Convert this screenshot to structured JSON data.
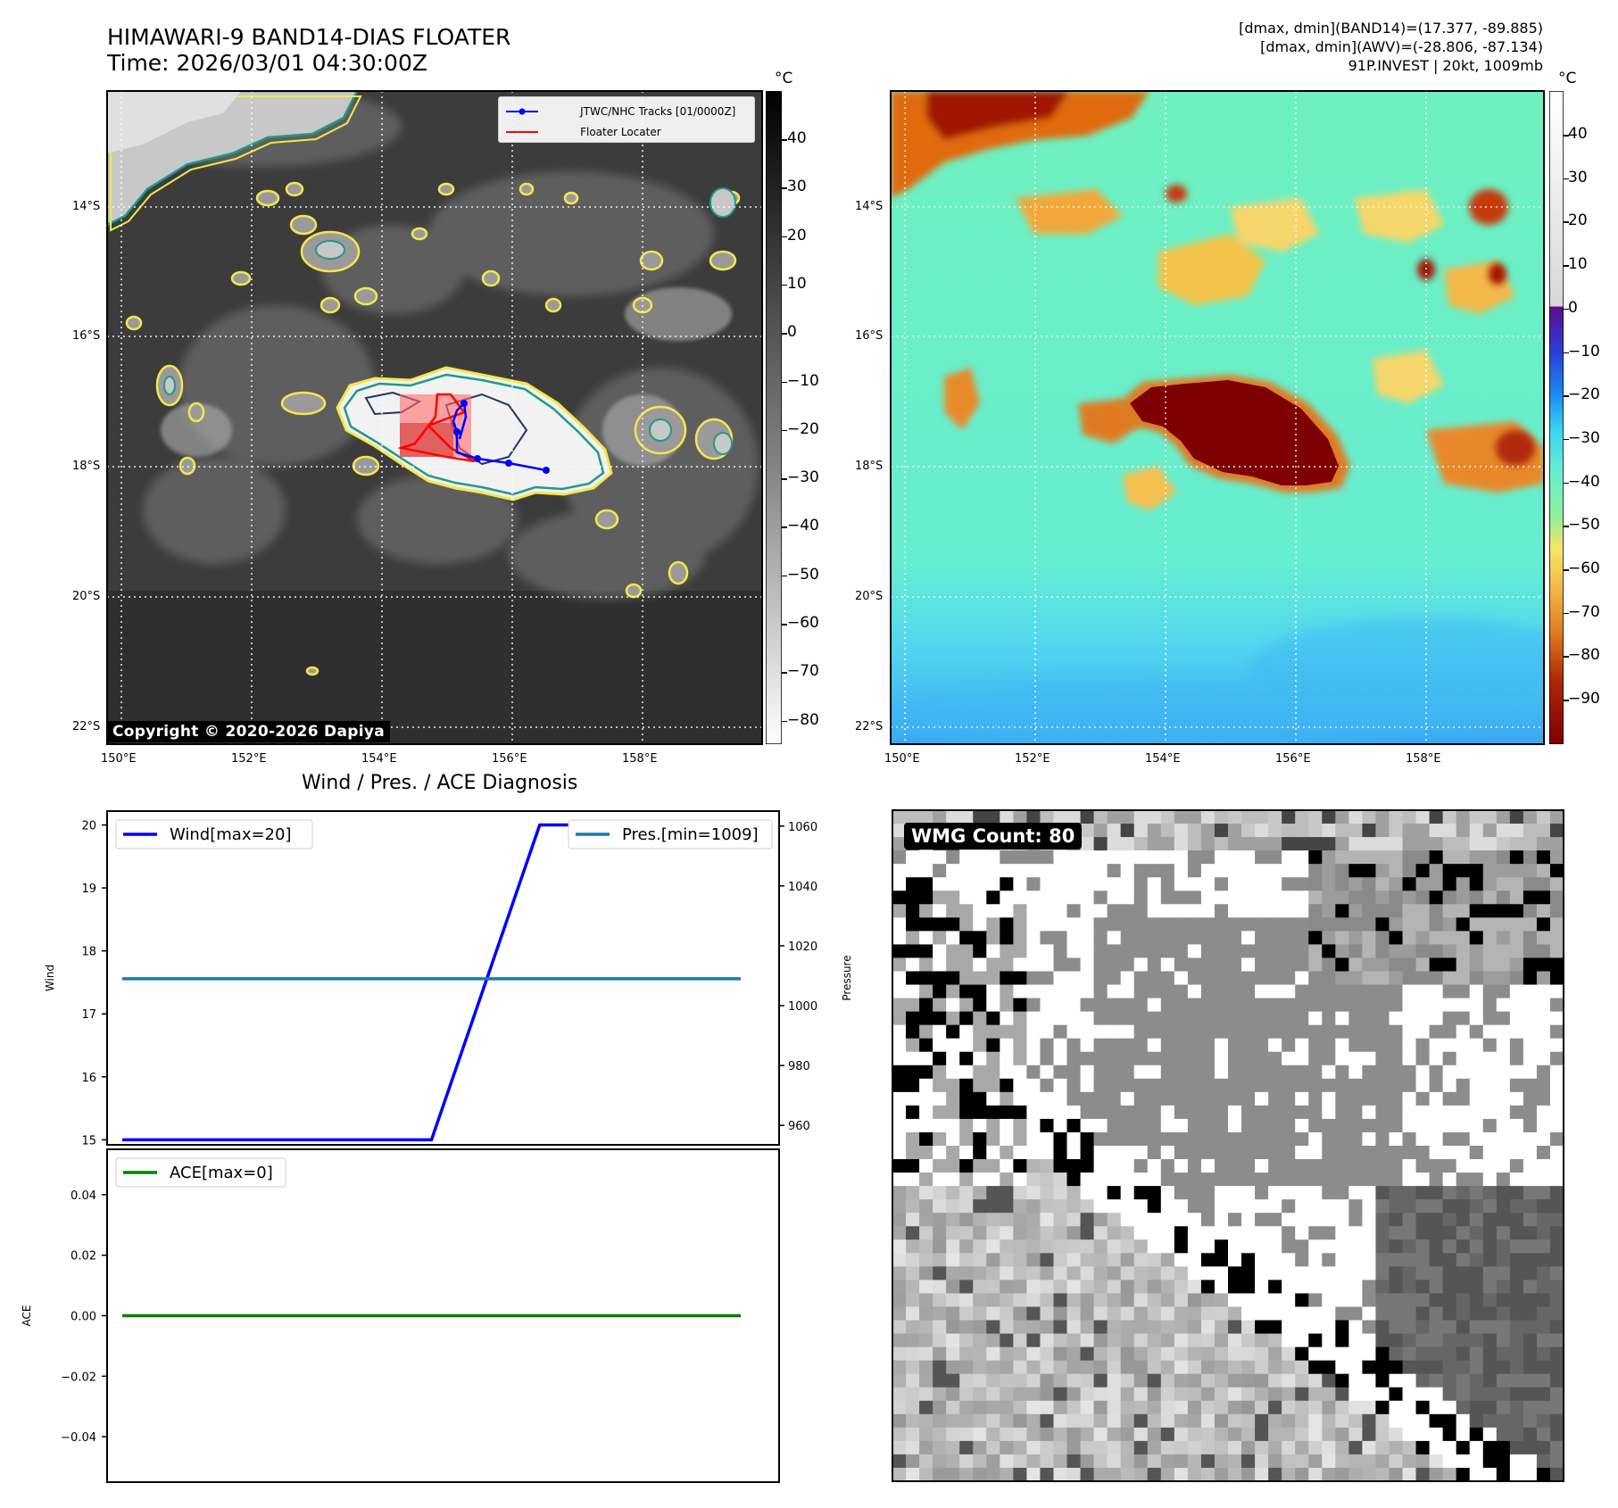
{
  "header": {
    "title_line1": "HIMAWARI-9 BAND14-DIAS FLOATER",
    "title_line2": "Time: 2026/03/01 04:30:00Z",
    "meta_line1": "[dmax, dmin](BAND14)=(17.377, -89.885)",
    "meta_line2": "[dmax, dmin](AWV)=(-28.806, -87.134)",
    "meta_line3": "91P.INVEST | 20kt, 1009mb"
  },
  "maps": {
    "lat_labels": [
      "14°S",
      "16°S",
      "18°S",
      "20°S",
      "22°S"
    ],
    "lon_labels": [
      "150°E",
      "152°E",
      "154°E",
      "156°E",
      "158°E"
    ],
    "copyright": "Copyright © 2020-2026 Dapiya",
    "legend_tracks": "JTWC/NHC Tracks [01/0000Z]",
    "legend_floater": "Floater Locater",
    "track_color": "#0000ff",
    "floater_color": "#ff0000"
  },
  "colorbar_left": {
    "unit": "°C",
    "ticks": [
      "40",
      "30",
      "20",
      "10",
      "0",
      "−10",
      "−20",
      "−30",
      "−40",
      "−50",
      "−60",
      "−70",
      "−80"
    ]
  },
  "colorbar_right": {
    "unit": "°C",
    "ticks": [
      "40",
      "30",
      "20",
      "10",
      "0",
      "−10",
      "−20",
      "−30",
      "−40",
      "−50",
      "−60",
      "−70",
      "−80",
      "−90"
    ]
  },
  "wmg": {
    "label": "WMG Count: 80"
  },
  "chart_data": [
    {
      "type": "line",
      "title": "Wind / Pres. / ACE Diagnosis",
      "ylabel": "Wind",
      "y2label": "Pressure",
      "ylim": [
        14.92,
        20.22
      ],
      "y2lim": [
        953.5,
        1065
      ],
      "yticks": [
        "20",
        "19",
        "18",
        "17",
        "16",
        "15"
      ],
      "y2ticks": [
        "1060",
        "1040",
        "1020",
        "1000",
        "980",
        "960"
      ],
      "grid": false,
      "legend_left": "top-left",
      "legend_right": "top-right",
      "series": [
        {
          "name": "Wind[max=20]",
          "axis": "left",
          "color": "#0000ff",
          "x": [
            0,
            0.5,
            0.675,
            1
          ],
          "values": [
            15,
            15,
            20,
            20
          ]
        },
        {
          "name": "Pres.[min=1009]",
          "axis": "right",
          "color": "#1f77b4",
          "x": [
            0,
            1
          ],
          "values": [
            1009,
            1009
          ]
        }
      ]
    },
    {
      "type": "line",
      "ylabel": "ACE",
      "ylim": [
        -0.055,
        0.055
      ],
      "yticks": [
        "0.04",
        "0.02",
        "0.00",
        "−0.02",
        "−0.04"
      ],
      "grid": false,
      "legend": "top-left",
      "series": [
        {
          "name": "ACE[max=0]",
          "color": "#008000",
          "x": [
            0,
            1
          ],
          "values": [
            0,
            0
          ]
        }
      ]
    }
  ]
}
